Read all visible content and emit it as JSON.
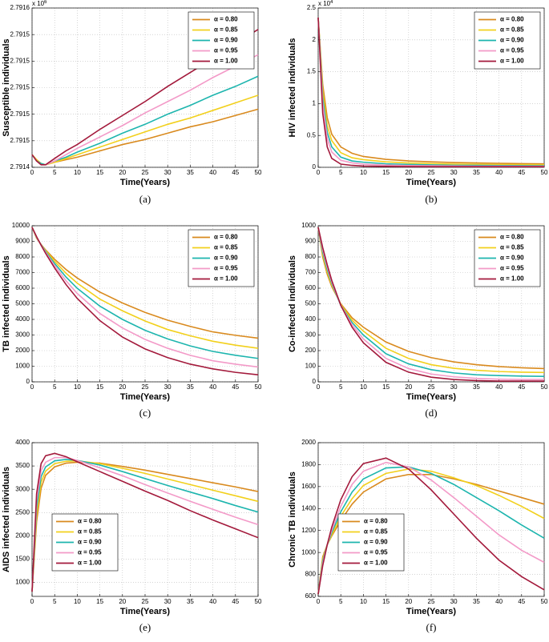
{
  "chart_data": [
    {
      "type": "line",
      "caption": "(a)",
      "xlabel": "Time(Years)",
      "ylabel": "Susceptible individuals",
      "y_multiplier": "x 10",
      "y_multiplier_exponent": "6",
      "x": [
        0,
        1,
        2,
        3,
        5,
        7.5,
        10,
        15,
        20,
        25,
        30,
        35,
        40,
        45,
        50
      ],
      "xlim": [
        0,
        50
      ],
      "xticks": [
        0,
        5,
        10,
        15,
        20,
        25,
        30,
        35,
        40,
        45,
        50
      ],
      "ylim": [
        2.79144,
        2.791566
      ],
      "yticks": [
        {
          "value": 2.79144,
          "label": "2.7914"
        },
        {
          "value": 2.791461,
          "label": "2.7915"
        },
        {
          "value": 2.791482,
          "label": "2.7915"
        },
        {
          "value": 2.791503,
          "label": "2.7915"
        },
        {
          "value": 2.791524,
          "label": "2.7915"
        },
        {
          "value": 2.791545,
          "label": "2.7915"
        },
        {
          "value": 2.791566,
          "label": "2.7916"
        }
      ],
      "grid": true,
      "legend": "upper right",
      "series": [
        {
          "name": "α = 0.80",
          "color": "#d98a1e",
          "values": [
            2.79145,
            2.791446,
            2.791443,
            2.791442,
            2.791444,
            2.791446,
            2.791448,
            2.791453,
            2.791458,
            2.791462,
            2.791467,
            2.791472,
            2.791476,
            2.791481,
            2.791486
          ]
        },
        {
          "name": "α = 0.85",
          "color": "#f2d01c",
          "values": [
            2.79145,
            2.791446,
            2.791443,
            2.791442,
            2.791444,
            2.791447,
            2.79145,
            2.791456,
            2.791462,
            2.791468,
            2.791474,
            2.791479,
            2.791485,
            2.791491,
            2.791497
          ]
        },
        {
          "name": "α = 0.90",
          "color": "#1db5ae",
          "values": [
            2.79145,
            2.791445,
            2.791443,
            2.791442,
            2.791445,
            2.791448,
            2.791452,
            2.791459,
            2.791467,
            2.791474,
            2.791482,
            2.791489,
            2.791497,
            2.791504,
            2.791512
          ]
        },
        {
          "name": "α = 0.95",
          "color": "#f39ac8",
          "values": [
            2.79145,
            2.791445,
            2.791442,
            2.791442,
            2.791445,
            2.79145,
            2.791455,
            2.791464,
            2.791473,
            2.791483,
            2.791492,
            2.791501,
            2.791511,
            2.79152,
            2.791529
          ]
        },
        {
          "name": "α = 1.00",
          "color": "#a3193b",
          "values": [
            2.79145,
            2.791445,
            2.791442,
            2.791442,
            2.791447,
            2.791453,
            2.791458,
            2.79147,
            2.791481,
            2.791492,
            2.791504,
            2.791515,
            2.791526,
            2.791538,
            2.791549
          ]
        }
      ]
    },
    {
      "type": "line",
      "caption": "(b)",
      "xlabel": "Time(Years)",
      "ylabel": "HIV infected individuals",
      "y_multiplier": "x 10",
      "y_multiplier_exponent": "4",
      "x": [
        0,
        1,
        2,
        3,
        5,
        7.5,
        10,
        15,
        20,
        25,
        30,
        35,
        40,
        45,
        50
      ],
      "xlim": [
        0,
        50
      ],
      "xticks": [
        0,
        5,
        10,
        15,
        20,
        25,
        30,
        35,
        40,
        45,
        50
      ],
      "ylim": [
        0,
        2.5
      ],
      "yticks": [
        0,
        0.5,
        1,
        1.5,
        2,
        2.5
      ],
      "grid": true,
      "legend": "upper right",
      "series": [
        {
          "name": "α = 0.80",
          "color": "#d98a1e",
          "values": [
            2.35,
            1.3,
            0.78,
            0.52,
            0.32,
            0.22,
            0.17,
            0.125,
            0.1,
            0.085,
            0.075,
            0.068,
            0.062,
            0.058,
            0.055
          ]
        },
        {
          "name": "α = 0.85",
          "color": "#f2d01c",
          "values": [
            2.35,
            1.2,
            0.65,
            0.42,
            0.23,
            0.15,
            0.12,
            0.085,
            0.068,
            0.058,
            0.05,
            0.045,
            0.042,
            0.04,
            0.038
          ]
        },
        {
          "name": "α = 0.90",
          "color": "#1db5ae",
          "values": [
            2.35,
            1.1,
            0.55,
            0.32,
            0.16,
            0.1,
            0.08,
            0.055,
            0.045,
            0.038,
            0.033,
            0.03,
            0.028,
            0.026,
            0.025
          ]
        },
        {
          "name": "α = 0.95",
          "color": "#f39ac8",
          "values": [
            2.35,
            1.0,
            0.45,
            0.24,
            0.11,
            0.07,
            0.05,
            0.035,
            0.028,
            0.024,
            0.021,
            0.019,
            0.018,
            0.017,
            0.016
          ]
        },
        {
          "name": "α = 1.00",
          "color": "#a3193b",
          "values": [
            2.35,
            0.85,
            0.32,
            0.14,
            0.05,
            0.03,
            0.02,
            0.015,
            0.012,
            0.01,
            0.01,
            0.01,
            0.01,
            0.01,
            0.01
          ]
        }
      ]
    },
    {
      "type": "line",
      "caption": "(c)",
      "xlabel": "Time(Years)",
      "ylabel": "TB infected individuals",
      "x": [
        0,
        1,
        2,
        3,
        5,
        7.5,
        10,
        15,
        20,
        25,
        30,
        35,
        40,
        45,
        50
      ],
      "xlim": [
        0,
        50
      ],
      "xticks": [
        0,
        5,
        10,
        15,
        20,
        25,
        30,
        35,
        40,
        45,
        50
      ],
      "ylim": [
        0,
        10000
      ],
      "yticks": [
        0,
        1000,
        2000,
        3000,
        4000,
        5000,
        6000,
        7000,
        8000,
        9000,
        10000
      ],
      "grid": true,
      "legend": "upper right",
      "series": [
        {
          "name": "α = 0.80",
          "color": "#d98a1e",
          "values": [
            9900,
            9200,
            8800,
            8450,
            7850,
            7200,
            6650,
            5750,
            5050,
            4450,
            3950,
            3550,
            3200,
            2980,
            2800
          ]
        },
        {
          "name": "α = 0.85",
          "color": "#f2d01c",
          "values": [
            9900,
            9220,
            8790,
            8400,
            7720,
            6960,
            6320,
            5300,
            4550,
            3900,
            3350,
            2950,
            2600,
            2350,
            2150
          ]
        },
        {
          "name": "α = 0.90",
          "color": "#1db5ae",
          "values": [
            9900,
            9250,
            8780,
            8350,
            7580,
            6720,
            5990,
            4850,
            4000,
            3300,
            2750,
            2300,
            1950,
            1700,
            1500
          ]
        },
        {
          "name": "α = 0.95",
          "color": "#f39ac8",
          "values": [
            9900,
            9270,
            8760,
            8290,
            7440,
            6480,
            5660,
            4380,
            3450,
            2720,
            2150,
            1700,
            1350,
            1130,
            950
          ]
        },
        {
          "name": "α = 1.00",
          "color": "#a3193b",
          "values": [
            9900,
            9300,
            8750,
            8230,
            7290,
            6240,
            5340,
            3920,
            2870,
            2110,
            1550,
            1130,
            830,
            610,
            450
          ]
        }
      ]
    },
    {
      "type": "line",
      "caption": "(d)",
      "xlabel": "Time(Years)",
      "ylabel": "Co-infected individuals",
      "x": [
        0,
        1,
        2,
        3,
        5,
        7.5,
        10,
        15,
        20,
        25,
        30,
        35,
        40,
        45,
        50
      ],
      "xlim": [
        0,
        50
      ],
      "xticks": [
        0,
        5,
        10,
        15,
        20,
        25,
        30,
        35,
        40,
        45,
        50
      ],
      "ylim": [
        0,
        1000
      ],
      "yticks": [
        0,
        100,
        200,
        300,
        400,
        500,
        600,
        700,
        800,
        900,
        1000
      ],
      "grid": true,
      "legend": "upper right",
      "series": [
        {
          "name": "α = 0.80",
          "color": "#d98a1e",
          "values": [
            990,
            800,
            690,
            610,
            500,
            410,
            350,
            255,
            195,
            155,
            128,
            110,
            98,
            90,
            85
          ]
        },
        {
          "name": "α = 0.85",
          "color": "#f2d01c",
          "values": [
            990,
            815,
            705,
            620,
            495,
            395,
            325,
            215,
            150,
            110,
            87,
            74,
            66,
            62,
            60
          ]
        },
        {
          "name": "α = 0.90",
          "color": "#1db5ae",
          "values": [
            990,
            830,
            720,
            630,
            490,
            380,
            300,
            180,
            115,
            78,
            57,
            45,
            40,
            37,
            35
          ]
        },
        {
          "name": "α = 0.95",
          "color": "#f39ac8",
          "values": [
            990,
            845,
            735,
            640,
            490,
            365,
            275,
            150,
            85,
            50,
            32,
            22,
            17,
            15,
            15
          ]
        },
        {
          "name": "α = 1.00",
          "color": "#a3193b",
          "values": [
            990,
            860,
            750,
            650,
            490,
            350,
            250,
            125,
            62,
            30,
            15,
            8,
            5,
            5,
            5
          ]
        }
      ]
    },
    {
      "type": "line",
      "caption": "(e)",
      "xlabel": "Time(Years)",
      "ylabel": "AIDS infected individuals",
      "x": [
        0,
        1,
        2,
        3,
        5,
        7.5,
        10,
        15,
        20,
        25,
        30,
        35,
        40,
        45,
        50
      ],
      "xlim": [
        0,
        50
      ],
      "xticks": [
        0,
        5,
        10,
        15,
        20,
        25,
        30,
        35,
        40,
        45,
        50
      ],
      "ylim": [
        700,
        4000
      ],
      "yticks": [
        1000,
        1500,
        2000,
        2500,
        3000,
        3500,
        4000
      ],
      "grid": true,
      "legend": "lower left",
      "series": [
        {
          "name": "α = 0.80",
          "color": "#d98a1e",
          "values": [
            800,
            2300,
            3020,
            3300,
            3480,
            3560,
            3580,
            3560,
            3490,
            3410,
            3320,
            3230,
            3140,
            3050,
            2950
          ]
        },
        {
          "name": "α = 0.85",
          "color": "#f2d01c",
          "values": [
            800,
            2450,
            3150,
            3390,
            3550,
            3600,
            3610,
            3550,
            3450,
            3340,
            3220,
            3100,
            2980,
            2860,
            2740
          ]
        },
        {
          "name": "α = 0.90",
          "color": "#1db5ae",
          "values": [
            800,
            2600,
            3270,
            3480,
            3610,
            3640,
            3620,
            3520,
            3380,
            3230,
            3080,
            2940,
            2800,
            2650,
            2510
          ]
        },
        {
          "name": "α = 0.95",
          "color": "#f39ac8",
          "values": [
            800,
            2750,
            3400,
            3580,
            3680,
            3680,
            3620,
            3460,
            3290,
            3100,
            2920,
            2740,
            2570,
            2400,
            2240
          ]
        },
        {
          "name": "α = 1.00",
          "color": "#a3193b",
          "values": [
            800,
            2900,
            3550,
            3720,
            3770,
            3700,
            3590,
            3380,
            3170,
            2960,
            2760,
            2540,
            2340,
            2150,
            1960
          ]
        }
      ]
    },
    {
      "type": "line",
      "caption": "(f)",
      "xlabel": "Time(Years)",
      "ylabel": "Chronic TB individuals",
      "x": [
        0,
        1,
        2,
        3,
        5,
        7.5,
        10,
        15,
        20,
        25,
        30,
        35,
        40,
        45,
        50
      ],
      "xlim": [
        0,
        50
      ],
      "xticks": [
        0,
        5,
        10,
        15,
        20,
        25,
        30,
        35,
        40,
        45,
        50
      ],
      "ylim": [
        600,
        2000
      ],
      "yticks": [
        600,
        800,
        1000,
        1200,
        1400,
        1600,
        1800,
        2000
      ],
      "grid": true,
      "legend": "lower left",
      "series": [
        {
          "name": "α = 0.80",
          "color": "#d98a1e",
          "values": [
            620,
            960,
            1070,
            1150,
            1290,
            1440,
            1550,
            1670,
            1710,
            1710,
            1670,
            1620,
            1560,
            1500,
            1440
          ]
        },
        {
          "name": "α = 0.85",
          "color": "#f2d01c",
          "values": [
            620,
            940,
            1070,
            1160,
            1330,
            1490,
            1610,
            1720,
            1760,
            1740,
            1680,
            1610,
            1520,
            1420,
            1310
          ]
        },
        {
          "name": "α = 0.90",
          "color": "#1db5ae",
          "values": [
            620,
            920,
            1070,
            1180,
            1370,
            1550,
            1670,
            1770,
            1780,
            1720,
            1620,
            1500,
            1380,
            1250,
            1130
          ]
        },
        {
          "name": "α = 0.95",
          "color": "#f39ac8",
          "values": [
            620,
            900,
            1070,
            1200,
            1420,
            1620,
            1740,
            1820,
            1780,
            1660,
            1500,
            1330,
            1160,
            1020,
            910
          ]
        },
        {
          "name": "α = 1.00",
          "color": "#a3193b",
          "values": [
            620,
            880,
            1070,
            1230,
            1480,
            1690,
            1810,
            1860,
            1760,
            1570,
            1350,
            1130,
            930,
            780,
            660
          ]
        }
      ]
    }
  ]
}
